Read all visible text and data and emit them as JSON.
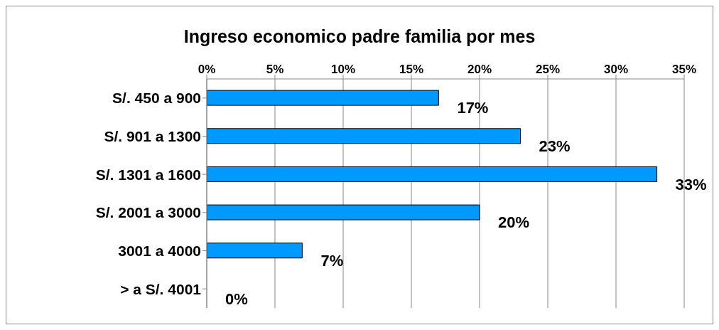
{
  "chart_data": {
    "type": "bar",
    "orientation": "horizontal",
    "title": "Ingreso economico padre familia por mes",
    "categories": [
      "S/. 450 a 900",
      "S/. 901 a 1300",
      "S/. 1301 a 1600",
      "S/. 2001 a 3000",
      "3001 a  4000",
      ">  a  S/. 4001"
    ],
    "values": [
      17,
      23,
      33,
      20,
      7,
      0
    ],
    "color": "#0099ff",
    "data_labels": true,
    "value_labels": [
      "17%",
      "23%",
      "33%",
      "20%",
      "7%",
      "0%"
    ],
    "xlim": [
      0,
      35
    ],
    "xticks": [
      {
        "value": 0,
        "label": "0%"
      },
      {
        "value": 5,
        "label": "5%"
      },
      {
        "value": 10,
        "label": "10%"
      },
      {
        "value": 15,
        "label": "15%"
      },
      {
        "value": 20,
        "label": "20%"
      },
      {
        "value": 25,
        "label": "25%"
      },
      {
        "value": 30,
        "label": "30%"
      },
      {
        "value": 35,
        "label": "35%"
      }
    ],
    "grid": "x",
    "legend": false
  }
}
